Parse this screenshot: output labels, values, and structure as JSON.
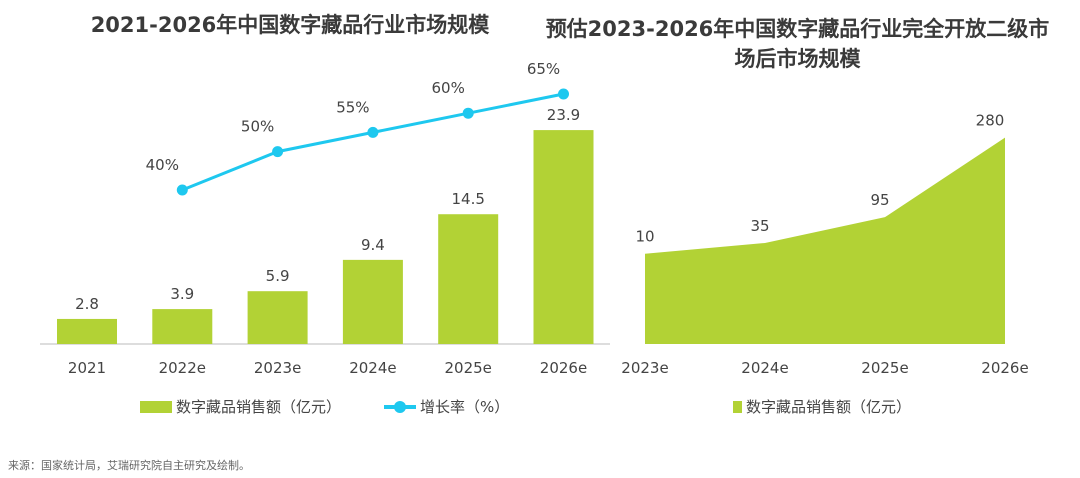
{
  "chart_data": [
    {
      "type": "bar",
      "title": "2021-2026年中国数字藏品行业市场规模",
      "categories": [
        "2021",
        "2022e",
        "2023e",
        "2024e",
        "2025e",
        "2026e"
      ],
      "series": [
        {
          "name": "数字藏品销售额（亿元）",
          "type": "bar",
          "values": [
            2.8,
            3.9,
            5.9,
            9.4,
            14.5,
            23.9
          ],
          "labels": [
            "2.8",
            "3.9",
            "5.9",
            "9.4",
            "14.5",
            "23.9"
          ],
          "color": "#b2d235"
        },
        {
          "name": "增长率（%）",
          "type": "line",
          "values": [
            null,
            40,
            50,
            55,
            60,
            65
          ],
          "labels": [
            "",
            "40%",
            "50%",
            "55%",
            "60%",
            "65%"
          ],
          "color": "#1ec8ef"
        }
      ]
    },
    {
      "type": "area",
      "title": "预估2023-2026年中国数字藏品行业完全开放二级市场后市场规模",
      "categories": [
        "2023e",
        "2024e",
        "2025e",
        "2026e"
      ],
      "series": [
        {
          "name": "数字藏品销售额（亿元）",
          "values": [
            10,
            35,
            95,
            280
          ],
          "labels": [
            "10",
            "35",
            "95",
            "280"
          ],
          "color": "#b2d235"
        }
      ]
    }
  ],
  "source": "来源：国家统计局，艾瑞研究院自主研究及绘制。"
}
